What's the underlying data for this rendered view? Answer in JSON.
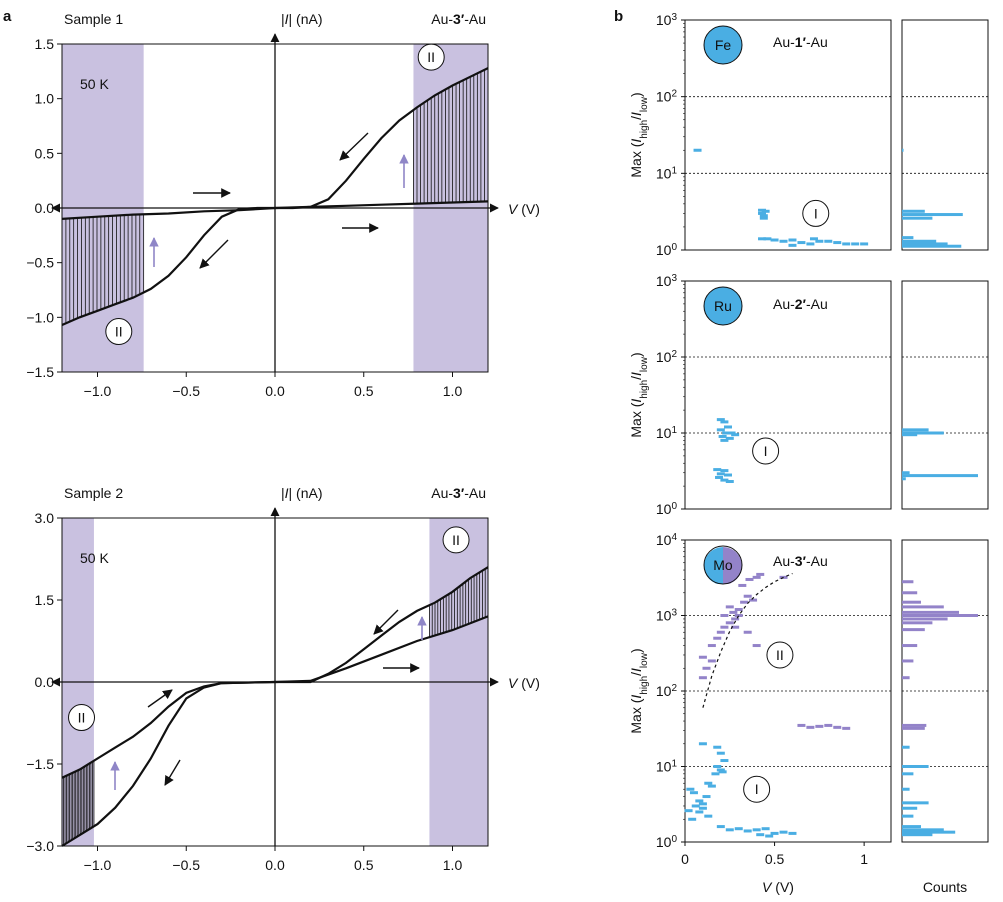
{
  "colors": {
    "shade": "#c9c1e0",
    "blue": "#4aaee3",
    "purple": "#9383c9",
    "ink": "#111111",
    "arrow_purple": "#8f86c7"
  },
  "panel_labels": {
    "a": "a",
    "b": "b"
  },
  "chart_data": [
    {
      "id": "a1",
      "type": "line",
      "title_left": "Sample 1",
      "title_right_pre": "Au-",
      "title_right_bold": "3′",
      "title_right_post": "-Au",
      "ylabel_pre": "|",
      "ylabel_italic": "I",
      "ylabel_post": "| (nA)",
      "xlabel_italic": "V",
      "xlabel_post": " (V)",
      "xlim": [
        -1.2,
        1.2
      ],
      "ylim": [
        -1.5,
        1.5
      ],
      "xticks": [
        -1.0,
        -0.5,
        0.0,
        0.5,
        1.0
      ],
      "xtick_labels": [
        "−1.0",
        "−0.5",
        "0.0",
        "0.5",
        "1.0"
      ],
      "yticks": [
        1.5,
        1.0,
        0.5,
        0.0,
        -0.5,
        -1.0,
        -1.5
      ],
      "ytick_labels": [
        "1.5",
        "1.0",
        "0.5",
        "0.0",
        "−0.5",
        "−1.0",
        "−1.5"
      ],
      "temperature": "50 K",
      "region_label": "II",
      "shaded_ranges": [
        [
          -1.2,
          -0.74
        ],
        [
          0.78,
          1.2
        ]
      ],
      "region_markers": [
        {
          "x": 0.88,
          "y": 1.38
        },
        {
          "x": -0.88,
          "y": -1.13
        }
      ],
      "series": [
        {
          "name": "high branch +V",
          "x": [
            0.0,
            0.1,
            0.2,
            0.3,
            0.4,
            0.5,
            0.6,
            0.7,
            0.8,
            0.9,
            1.0,
            1.1,
            1.2
          ],
          "y": [
            0.0,
            0.0,
            0.01,
            0.08,
            0.25,
            0.45,
            0.64,
            0.8,
            0.92,
            1.03,
            1.12,
            1.2,
            1.28
          ]
        },
        {
          "name": "low branch +V",
          "x": [
            0.0,
            0.2,
            0.4,
            0.6,
            0.8,
            1.0,
            1.2
          ],
          "y": [
            0.0,
            0.01,
            0.02,
            0.03,
            0.04,
            0.05,
            0.06
          ]
        },
        {
          "name": "high branch -V",
          "x": [
            0.0,
            -0.1,
            -0.2,
            -0.3,
            -0.4,
            -0.5,
            -0.6,
            -0.7,
            -0.8,
            -0.9,
            -1.0,
            -1.1,
            -1.2
          ],
          "y": [
            0.0,
            0.0,
            -0.01,
            -0.08,
            -0.25,
            -0.45,
            -0.62,
            -0.74,
            -0.82,
            -0.88,
            -0.94,
            -1.0,
            -1.07
          ]
        },
        {
          "name": "low branch -V",
          "x": [
            0.0,
            -0.2,
            -0.4,
            -0.6,
            -0.8,
            -1.0,
            -1.2
          ],
          "y": [
            0.0,
            -0.02,
            -0.03,
            -0.05,
            -0.06,
            -0.08,
            -0.1
          ]
        }
      ]
    },
    {
      "id": "a2",
      "type": "line",
      "title_left": "Sample 2",
      "title_right_pre": "Au-",
      "title_right_bold": "3′",
      "title_right_post": "-Au",
      "ylabel_pre": "|",
      "ylabel_italic": "I",
      "ylabel_post": "| (nA)",
      "xlabel_italic": "V",
      "xlabel_post": " (V)",
      "xlim": [
        -1.2,
        1.2
      ],
      "ylim": [
        -3.0,
        3.0
      ],
      "xticks": [
        -1.0,
        -0.5,
        0.0,
        0.5,
        1.0
      ],
      "xtick_labels": [
        "−1.0",
        "−0.5",
        "0.0",
        "0.5",
        "1.0"
      ],
      "yticks": [
        3.0,
        1.5,
        0.0,
        -1.5,
        -3.0
      ],
      "ytick_labels": [
        "3.0",
        "1.5",
        "0.0",
        "−1.5",
        "−3.0"
      ],
      "temperature": "50 K",
      "region_label": "II",
      "shaded_ranges": [
        [
          -1.2,
          -1.02
        ],
        [
          0.87,
          1.2
        ]
      ],
      "region_markers": [
        {
          "x": 1.02,
          "y": 2.6
        },
        {
          "x": -1.09,
          "y": -0.65
        }
      ],
      "series": [
        {
          "name": "high branch +V",
          "x": [
            0.0,
            0.2,
            0.3,
            0.4,
            0.5,
            0.6,
            0.7,
            0.8,
            0.9,
            1.0,
            1.1,
            1.2
          ],
          "y": [
            0.0,
            0.0,
            0.15,
            0.35,
            0.6,
            0.85,
            1.1,
            1.3,
            1.45,
            1.65,
            1.9,
            2.1
          ]
        },
        {
          "name": "low branch +V",
          "x": [
            0.0,
            0.2,
            0.4,
            0.6,
            0.8,
            1.0,
            1.2
          ],
          "y": [
            0.0,
            0.02,
            0.25,
            0.5,
            0.75,
            0.95,
            1.2
          ]
        },
        {
          "name": "high branch -V",
          "x": [
            0.0,
            -0.3,
            -0.4,
            -0.5,
            -0.6,
            -0.7,
            -0.8,
            -0.9,
            -1.0,
            -1.1,
            -1.2
          ],
          "y": [
            0.0,
            -0.02,
            -0.1,
            -0.3,
            -0.8,
            -1.4,
            -1.9,
            -2.3,
            -2.6,
            -2.8,
            -3.0
          ]
        },
        {
          "name": "low branch -V",
          "x": [
            0.0,
            -0.3,
            -0.4,
            -0.5,
            -0.6,
            -0.7,
            -0.8,
            -0.9,
            -1.0,
            -1.1,
            -1.2
          ],
          "y": [
            0.0,
            -0.02,
            -0.08,
            -0.2,
            -0.45,
            -0.75,
            -1.0,
            -1.2,
            -1.4,
            -1.6,
            -1.75
          ]
        }
      ]
    },
    {
      "id": "b1",
      "type": "scatter",
      "yscale": "log",
      "molecule_pre": "Au-",
      "molecule_bold": "1′",
      "molecule_post": "-Au",
      "element": "Fe",
      "region_label": "I",
      "xlim": [
        0,
        1.15
      ],
      "ylim": [
        1,
        1000
      ],
      "ytick_labels": [
        {
          "base": "10",
          "exp": "0"
        },
        {
          "base": "10",
          "exp": "1"
        },
        {
          "base": "10",
          "exp": "2"
        },
        {
          "base": "10",
          "exp": "3"
        }
      ],
      "ylabel": "Max (I_high/I_low)",
      "hlines": [
        10,
        100
      ],
      "points_blue": [
        [
          0.07,
          20
        ],
        [
          0.43,
          3.3
        ],
        [
          0.43,
          3.0
        ],
        [
          0.44,
          2.8
        ],
        [
          0.45,
          3.2
        ],
        [
          0.44,
          2.6
        ],
        [
          0.43,
          1.4
        ],
        [
          0.46,
          1.4
        ],
        [
          0.5,
          1.35
        ],
        [
          0.55,
          1.3
        ],
        [
          0.6,
          1.35
        ],
        [
          0.65,
          1.25
        ],
        [
          0.72,
          1.4
        ],
        [
          0.75,
          1.3
        ],
        [
          0.8,
          1.3
        ],
        [
          0.85,
          1.25
        ],
        [
          0.9,
          1.2
        ],
        [
          0.95,
          1.2
        ],
        [
          1.0,
          1.2
        ],
        [
          0.6,
          1.15
        ],
        [
          0.7,
          1.2
        ]
      ],
      "region_marker": {
        "x": 0.73,
        "y": 3.0
      },
      "histogram_blue": [
        {
          "y": 20,
          "count": 0.02
        },
        {
          "y": 3.2,
          "count": 0.3
        },
        {
          "y": 2.9,
          "count": 0.8
        },
        {
          "y": 2.6,
          "count": 0.4
        },
        {
          "y": 1.45,
          "count": 0.15
        },
        {
          "y": 1.3,
          "count": 0.45
        },
        {
          "y": 1.2,
          "count": 0.6
        },
        {
          "y": 1.12,
          "count": 0.78
        }
      ]
    },
    {
      "id": "b2",
      "type": "scatter",
      "yscale": "log",
      "molecule_pre": "Au-",
      "molecule_bold": "2′",
      "molecule_post": "-Au",
      "element": "Ru",
      "region_label": "I",
      "xlim": [
        0,
        1.15
      ],
      "ylim": [
        1,
        1000
      ],
      "ytick_labels": [
        {
          "base": "10",
          "exp": "0"
        },
        {
          "base": "10",
          "exp": "1"
        },
        {
          "base": "10",
          "exp": "2"
        },
        {
          "base": "10",
          "exp": "3"
        }
      ],
      "ylabel": "Max (I_high/I_low)",
      "hlines": [
        10,
        100
      ],
      "points_blue": [
        [
          0.2,
          15
        ],
        [
          0.22,
          14
        ],
        [
          0.24,
          12
        ],
        [
          0.2,
          11
        ],
        [
          0.23,
          10
        ],
        [
          0.26,
          10
        ],
        [
          0.21,
          9
        ],
        [
          0.25,
          8.5
        ],
        [
          0.28,
          9.5
        ],
        [
          0.22,
          8
        ],
        [
          0.18,
          3.3
        ],
        [
          0.22,
          3.2
        ],
        [
          0.2,
          2.9
        ],
        [
          0.24,
          2.8
        ],
        [
          0.19,
          2.6
        ],
        [
          0.22,
          2.4
        ],
        [
          0.25,
          2.3
        ]
      ],
      "region_marker": {
        "x": 0.45,
        "y": 5.8
      },
      "histogram_blue": [
        {
          "y": 11,
          "count": 0.35
        },
        {
          "y": 10,
          "count": 0.55
        },
        {
          "y": 9.5,
          "count": 0.2
        },
        {
          "y": 3.0,
          "count": 0.1
        },
        {
          "y": 2.75,
          "count": 1.0
        },
        {
          "y": 2.5,
          "count": 0.05
        }
      ]
    },
    {
      "id": "b3",
      "type": "scatter",
      "yscale": "log",
      "molecule_pre": "Au-",
      "molecule_bold": "3′",
      "molecule_post": "-Au",
      "element": "Mo",
      "xlim": [
        0,
        1.15
      ],
      "ylim": [
        1,
        10000
      ],
      "ytick_labels": [
        {
          "base": "10",
          "exp": "0"
        },
        {
          "base": "10",
          "exp": "1"
        },
        {
          "base": "10",
          "exp": "2"
        },
        {
          "base": "10",
          "exp": "3"
        },
        {
          "base": "10",
          "exp": "4"
        }
      ],
      "ylabel": "Max (I_high/I_low)",
      "hlines": [
        10,
        100,
        1000
      ],
      "xlabel_italic": "V",
      "xlabel_post": " (V)",
      "hist_xlabel": "Counts",
      "xticks": [
        0,
        0.5,
        1
      ],
      "xtick_labels": [
        "0",
        "0.5",
        "1"
      ],
      "points_blue": [
        [
          0.1,
          20
        ],
        [
          0.18,
          18
        ],
        [
          0.2,
          15
        ],
        [
          0.22,
          12
        ],
        [
          0.18,
          10
        ],
        [
          0.2,
          9
        ],
        [
          0.17,
          8
        ],
        [
          0.21,
          8.5
        ],
        [
          0.03,
          5
        ],
        [
          0.05,
          4.5
        ],
        [
          0.08,
          3.5
        ],
        [
          0.1,
          3.2
        ],
        [
          0.12,
          4
        ],
        [
          0.06,
          3
        ],
        [
          0.02,
          2.6
        ],
        [
          0.08,
          2.5
        ],
        [
          0.1,
          2.8
        ],
        [
          0.13,
          2.2
        ],
        [
          0.04,
          2
        ],
        [
          0.15,
          5.5
        ],
        [
          0.13,
          6
        ],
        [
          0.2,
          1.6
        ],
        [
          0.25,
          1.45
        ],
        [
          0.3,
          1.5
        ],
        [
          0.35,
          1.4
        ],
        [
          0.4,
          1.45
        ],
        [
          0.45,
          1.5
        ],
        [
          0.5,
          1.3
        ],
        [
          0.55,
          1.35
        ],
        [
          0.42,
          1.25
        ],
        [
          0.6,
          1.3
        ],
        [
          0.47,
          1.2
        ]
      ],
      "points_purple": [
        [
          0.1,
          150
        ],
        [
          0.12,
          200
        ],
        [
          0.1,
          280
        ],
        [
          0.15,
          250
        ],
        [
          0.15,
          400
        ],
        [
          0.18,
          500
        ],
        [
          0.2,
          600
        ],
        [
          0.22,
          700
        ],
        [
          0.25,
          800
        ],
        [
          0.28,
          900
        ],
        [
          0.3,
          1000
        ],
        [
          0.3,
          1200
        ],
        [
          0.33,
          1500
        ],
        [
          0.35,
          1800
        ],
        [
          0.32,
          2500
        ],
        [
          0.36,
          3000
        ],
        [
          0.4,
          3200
        ],
        [
          0.42,
          3500
        ],
        [
          0.25,
          1300
        ],
        [
          0.27,
          1100
        ],
        [
          0.35,
          600
        ],
        [
          0.28,
          700
        ],
        [
          0.38,
          1600
        ],
        [
          0.4,
          400
        ],
        [
          0.22,
          1000
        ],
        [
          0.55,
          3200
        ],
        [
          0.65,
          35
        ],
        [
          0.7,
          33
        ],
        [
          0.75,
          34
        ],
        [
          0.8,
          35
        ],
        [
          0.85,
          33
        ],
        [
          0.9,
          32
        ]
      ],
      "fit_curve": {
        "x": [
          0.1,
          0.15,
          0.2,
          0.25,
          0.3,
          0.35,
          0.4,
          0.45,
          0.5,
          0.55,
          0.6
        ],
        "y": [
          60,
          160,
          330,
          620,
          1000,
          1450,
          1900,
          2350,
          2800,
          3200,
          3600
        ]
      },
      "region_markers": [
        {
          "label": "II",
          "x": 0.53,
          "y": 300
        },
        {
          "label": "I",
          "x": 0.4,
          "y": 5
        }
      ],
      "histogram_purple": [
        {
          "y": 2800,
          "count": 0.15
        },
        {
          "y": 2000,
          "count": 0.2
        },
        {
          "y": 1500,
          "count": 0.25
        },
        {
          "y": 1300,
          "count": 0.55
        },
        {
          "y": 1100,
          "count": 0.75
        },
        {
          "y": 1000,
          "count": 1.0
        },
        {
          "y": 900,
          "count": 0.6
        },
        {
          "y": 800,
          "count": 0.4
        },
        {
          "y": 650,
          "count": 0.3
        },
        {
          "y": 400,
          "count": 0.2
        },
        {
          "y": 250,
          "count": 0.15
        },
        {
          "y": 150,
          "count": 0.1
        },
        {
          "y": 35,
          "count": 0.32
        },
        {
          "y": 32,
          "count": 0.3
        }
      ],
      "histogram_blue": [
        {
          "y": 18,
          "count": 0.1
        },
        {
          "y": 10,
          "count": 0.35
        },
        {
          "y": 8,
          "count": 0.15
        },
        {
          "y": 5,
          "count": 0.1
        },
        {
          "y": 3.3,
          "count": 0.35
        },
        {
          "y": 2.8,
          "count": 0.2
        },
        {
          "y": 2.2,
          "count": 0.15
        },
        {
          "y": 1.6,
          "count": 0.25
        },
        {
          "y": 1.45,
          "count": 0.55
        },
        {
          "y": 1.35,
          "count": 0.7
        },
        {
          "y": 1.25,
          "count": 0.4
        }
      ]
    }
  ]
}
